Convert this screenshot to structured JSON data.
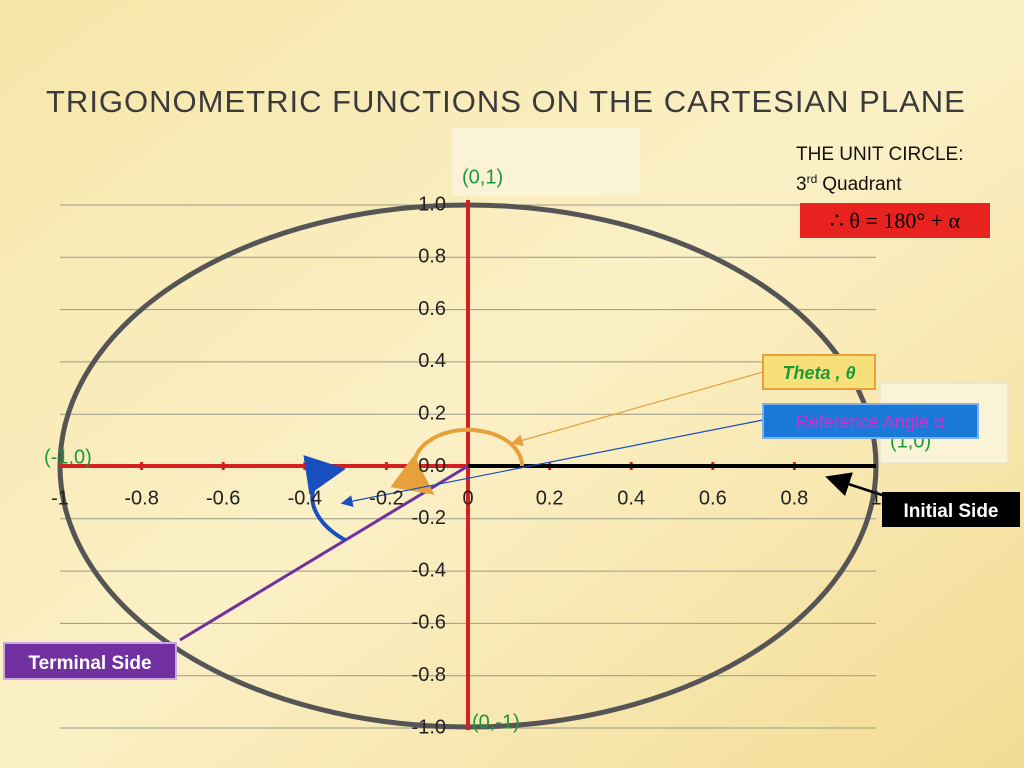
{
  "header": {
    "title": "TRIGONOMETRIC FUNCTIONS ON THE CARTESIAN PLANE"
  },
  "note": {
    "line1": "THE UNIT CIRCLE:",
    "ordinal": "3",
    "suffix": "rd",
    "line2": "Quadrant",
    "formula": "∴ θ = 180° + α"
  },
  "plane": {
    "x_tick_labels": [
      "-1",
      "-0.8",
      "-0.6",
      "-0.4",
      "-0.2",
      "0",
      "0.2",
      "0.4",
      "0.6",
      "0.8",
      "1"
    ],
    "y_tick_labels": [
      "1.0",
      "0.8",
      "0.6",
      "0.4",
      "0.2",
      "0.0",
      "-0.2",
      "-0.4",
      "-0.6",
      "-0.8",
      "-1.0"
    ],
    "points": {
      "top": "(0,1)",
      "left": "(-1,0)",
      "right": "(1,0)",
      "bottom": "(0,-1)"
    }
  },
  "labels": {
    "theta": "Theta , θ",
    "reference": "Reference Angle α",
    "initial": "Initial Side",
    "terminal": "Terminal Side"
  }
}
